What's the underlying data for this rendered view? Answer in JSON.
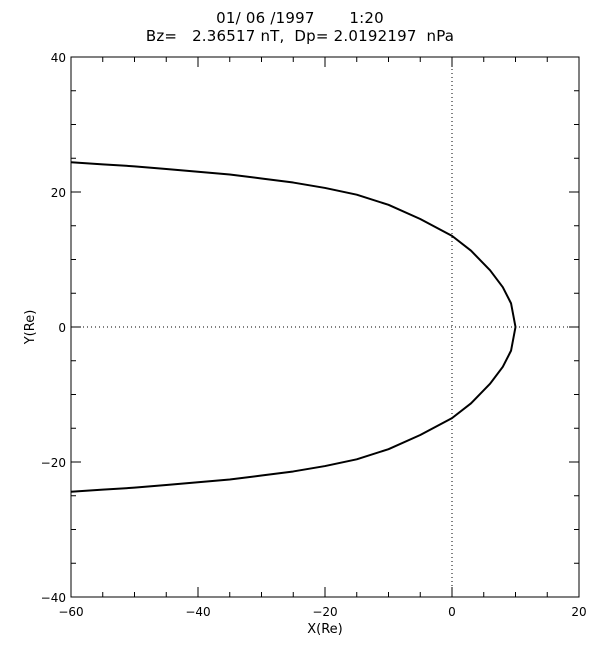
{
  "chart_data": {
    "type": "line",
    "title_line1": "01/ 06 /1997       1:20",
    "title_line2": "Bz=   2.36517 nT,  Dp= 2.0192197  nPa",
    "xlabel": "X(Re)",
    "ylabel": "Y(Re)",
    "xlim": [
      -60,
      20
    ],
    "ylim": [
      -40,
      40
    ],
    "x_ticks": [
      -60,
      -40,
      -20,
      0,
      20
    ],
    "y_ticks": [
      -40,
      -20,
      0,
      20,
      40
    ],
    "x_tick_labels": [
      "−60",
      "−40",
      "−20",
      "0",
      "20"
    ],
    "y_tick_labels": [
      "−40",
      "−20",
      "0",
      "20",
      "40"
    ],
    "reference_lines": {
      "x": 0,
      "y": 0,
      "style": "dotted"
    },
    "grid": false,
    "series": [
      {
        "x": [
          -60,
          -55,
          -50,
          -45,
          -40,
          -35,
          -30,
          -25,
          -20,
          -15,
          -10,
          -5,
          0,
          3,
          6,
          8,
          9.3,
          10,
          9.3,
          8,
          6,
          3,
          0,
          -5,
          -10,
          -15,
          -20,
          -25,
          -30,
          -35,
          -40,
          -45,
          -50,
          -55,
          -60
        ],
        "y": [
          24.4,
          24.1,
          23.8,
          23.4,
          23.0,
          22.6,
          22.0,
          21.4,
          20.6,
          19.6,
          18.1,
          16.0,
          13.5,
          11.3,
          8.4,
          5.9,
          3.5,
          0,
          -3.5,
          -5.9,
          -8.4,
          -11.3,
          -13.5,
          -16.0,
          -18.1,
          -19.6,
          -20.6,
          -21.4,
          -22.0,
          -22.6,
          -23.0,
          -23.4,
          -23.8,
          -24.1,
          -24.4
        ],
        "color": "#000000"
      }
    ]
  }
}
